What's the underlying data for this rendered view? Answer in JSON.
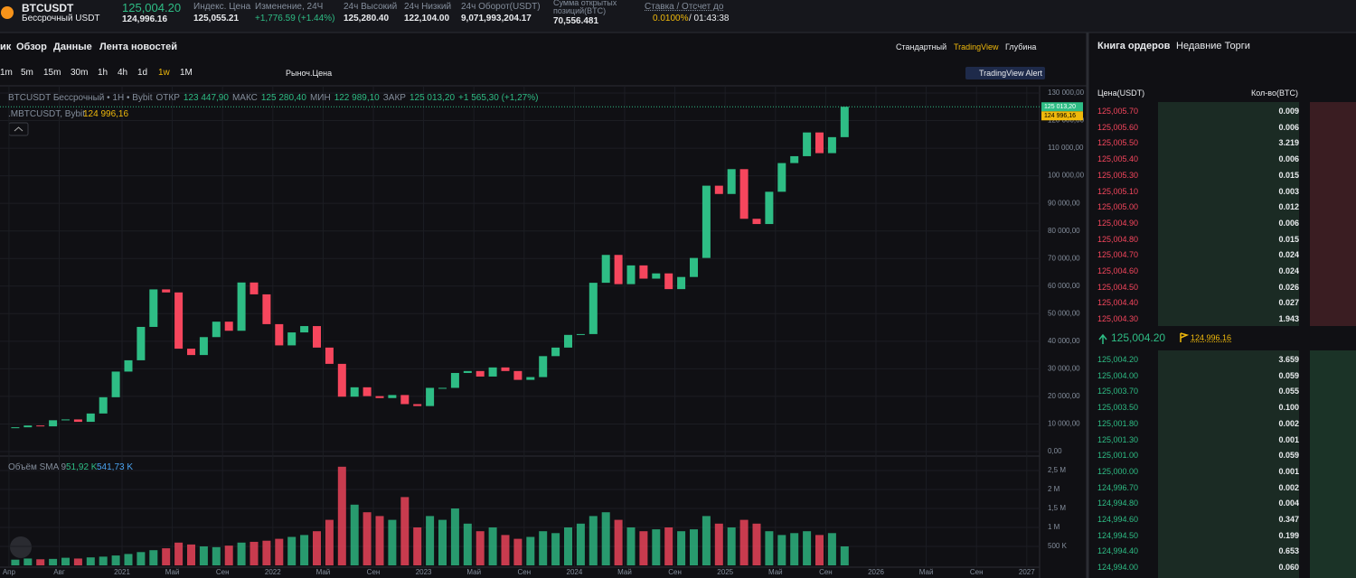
{
  "header": {
    "symbol": "BTCUSDT",
    "contract": "Бессрочный USDT",
    "last_price": "125,004.20",
    "mark_price": "124,996.16",
    "stats": [
      {
        "label": "Индекс. Цена",
        "value": "125,055.21"
      },
      {
        "label": "Изменение, 24Ч",
        "value": "+1,776.59 (+1.44%)"
      },
      {
        "label": "24ч Высокий",
        "value": "125,280.40"
      },
      {
        "label": "24ч Низкий",
        "value": "122,104.00"
      },
      {
        "label": "24ч Оборот(USDT)",
        "value": "9,071,993,204.17"
      },
      {
        "label": "Сумма открытых позиций(BTC)",
        "value": "70,556.481"
      }
    ],
    "funding_label": "Ставка / Отсчет до",
    "funding_rate": "0.0100%",
    "countdown": "/ 01:43:38"
  },
  "tabs": [
    "ик",
    "Обзор",
    "Данные",
    "Лента новостей"
  ],
  "views": [
    "Стандартный",
    "TradingView",
    "Глубина"
  ],
  "intervals": [
    "1m",
    "5m",
    "15m",
    "30m",
    "1h",
    "4h",
    "1d",
    "1w",
    "1M"
  ],
  "price_type": "Рыноч.Цена",
  "alert": "TradingView Alert",
  "legend": {
    "title": "BTCUSDT Бессрочный • 1H • Bybit",
    "ohlc": [
      {
        "label": "ОТКР",
        "value": "123 447,90"
      },
      {
        "label": "МАКС",
        "value": "125 280,40"
      },
      {
        "label": "МИН",
        "value": "122 989,10"
      },
      {
        "label": "ЗАКР",
        "value": "125 013,20"
      }
    ],
    "change": "+1 565,30 (+1,27%)",
    "index": ".MBTCUSDT, Bybit",
    "index_value": "124 996,16"
  },
  "volume_legend": {
    "title": "Объём SMA 9",
    "sma": "51,92 K",
    "volume": "541,73 K"
  },
  "chart": {
    "type": "candlestick",
    "up_color": "#2ebd85",
    "down_color": "#f6465d",
    "x": [
      "2020-04",
      "2020-05",
      "2020-06",
      "2020-07",
      "2020-08",
      "2020-09",
      "2020-10",
      "2020-11",
      "2020-12",
      "2021-01",
      "2021-02",
      "2021-03",
      "2021-04",
      "2021-05",
      "2021-06",
      "2021-07",
      "2021-08",
      "2021-09",
      "2021-10",
      "2021-11",
      "2021-12",
      "2022-01",
      "2022-02",
      "2022-03",
      "2022-04",
      "2022-05",
      "2022-06",
      "2022-07",
      "2022-08",
      "2022-09",
      "2022-10",
      "2022-11",
      "2022-12",
      "2023-01",
      "2023-02",
      "2023-03",
      "2023-04",
      "2023-05",
      "2023-06",
      "2023-07",
      "2023-08",
      "2023-09",
      "2023-10",
      "2023-11",
      "2023-12",
      "2024-01",
      "2024-02",
      "2024-03",
      "2024-04",
      "2024-05",
      "2024-06",
      "2024-07",
      "2024-08",
      "2024-09",
      "2024-10",
      "2024-11",
      "2024-12",
      "2025-01",
      "2025-02",
      "2025-03",
      "2025-04",
      "2025-05",
      "2025-06",
      "2025-07",
      "2025-08",
      "2025-09",
      "2025-10"
    ],
    "values": [
      8800,
      9450,
      9140,
      11350,
      11650,
      10780,
      13800,
      19700,
      29000,
      33100,
      45200,
      58800,
      57700,
      37300,
      35000,
      41500,
      47100,
      43800,
      61300,
      57000,
      46200,
      38500,
      43200,
      45500,
      37700,
      31800,
      19900,
      23300,
      20100,
      19400,
      20500,
      17200,
      16500,
      23100,
      23100,
      28500,
      29200,
      27200,
      30500,
      29200,
      26000,
      27000,
      34600,
      37700,
      42300,
      42600,
      61200,
      71300,
      60700,
      67500,
      62700,
      64600,
      58900,
      63300,
      70200,
      96400,
      93400,
      102400,
      84400,
      82500,
      94200,
      104600,
      107100,
      115700,
      108200,
      114000,
      125013.2
    ],
    "volumes": [
      150000,
      180000,
      160000,
      170000,
      200000,
      180000,
      210000,
      230000,
      260000,
      300000,
      350000,
      400000,
      450000,
      600000,
      550000,
      500000,
      480000,
      520000,
      600000,
      620000,
      650000,
      700000,
      750000,
      800000,
      900000,
      1200000,
      2600000,
      1600000,
      1400000,
      1300000,
      1200000,
      1800000,
      1000000,
      1300000,
      1200000,
      1500000,
      1100000,
      900000,
      1000000,
      800000,
      700000,
      750000,
      900000,
      850000,
      1000000,
      1100000,
      1300000,
      1400000,
      1200000,
      1000000,
      900000,
      950000,
      1000000,
      900000,
      950000,
      1300000,
      1100000,
      1000000,
      1200000,
      1100000,
      900000,
      800000,
      850000,
      900000,
      800000,
      850000,
      500000
    ],
    "ylim": [
      0,
      130000
    ],
    "yticks": [
      {
        "value": 0,
        "label": "0,00"
      },
      {
        "value": 10000,
        "label": "10 000,00"
      },
      {
        "value": 20000,
        "label": "20 000,00"
      },
      {
        "value": 30000,
        "label": "30 000,00"
      },
      {
        "value": 40000,
        "label": "40 000,00"
      },
      {
        "value": 50000,
        "label": "50 000,00"
      },
      {
        "value": 60000,
        "label": "60 000,00"
      },
      {
        "value": 70000,
        "label": "70 000,00"
      },
      {
        "value": 80000,
        "label": "80 000,00"
      },
      {
        "value": 90000,
        "label": "90 000,00"
      },
      {
        "value": 100000,
        "label": "100 000,00"
      },
      {
        "value": 110000,
        "label": "110 000,00"
      },
      {
        "value": 120000,
        "label": "120 000,00"
      },
      {
        "value": 130000,
        "label": "130 000,00"
      }
    ],
    "vol_lim": [
      0,
      2500000
    ],
    "vol_ticks": [
      {
        "value": 500000,
        "label": "500 K"
      },
      {
        "value": 1000000,
        "label": "1 M"
      },
      {
        "value": 1500000,
        "label": "1,5 M"
      },
      {
        "value": 2000000,
        "label": "2 M"
      },
      {
        "value": 2500000,
        "label": "2,5 M"
      }
    ],
    "xticks": [
      {
        "value": "2020-04",
        "label": "Апр"
      },
      {
        "value": "2020-08",
        "label": "Авг"
      },
      {
        "value": "2021-01",
        "label": "2021"
      },
      {
        "value": "2021-05",
        "label": "Май"
      },
      {
        "value": "2021-09",
        "label": "Сен"
      },
      {
        "value": "2022-01",
        "label": "2022"
      },
      {
        "value": "2022-05",
        "label": "Май"
      },
      {
        "value": "2022-09",
        "label": "Сен"
      },
      {
        "value": "2023-01",
        "label": "2023"
      },
      {
        "value": "2023-05",
        "label": "Май"
      },
      {
        "value": "2023-09",
        "label": "Сен"
      },
      {
        "value": "2024-01",
        "label": "2024"
      },
      {
        "value": "2024-05",
        "label": "Май"
      },
      {
        "value": "2024-09",
        "label": "Сен"
      },
      {
        "value": "2025-01",
        "label": "2025"
      },
      {
        "value": "2025-05",
        "label": "Май"
      },
      {
        "value": "2025-09",
        "label": "Сен"
      },
      {
        "value": "2026-01",
        "label": "2026"
      },
      {
        "value": "2026-05",
        "label": "Май"
      },
      {
        "value": "2026-09",
        "label": "Сен"
      },
      {
        "value": "2027-01",
        "label": "2027"
      }
    ],
    "last_label": {
      "value": 125013.2,
      "label": "125 013,20"
    },
    "index_label": {
      "value": 124996.16,
      "label": "124 996,16"
    }
  },
  "orderbook": {
    "tabs": [
      "Книга ордеров",
      "Недавние Торги"
    ],
    "columns": [
      "Цена(USDT)",
      "Кол-во(BTC)"
    ],
    "asks": [
      [
        "125,005.70",
        "0.009"
      ],
      [
        "125,005.60",
        "0.006"
      ],
      [
        "125,005.50",
        "3.219"
      ],
      [
        "125,005.40",
        "0.006"
      ],
      [
        "125,005.30",
        "0.015"
      ],
      [
        "125,005.10",
        "0.003"
      ],
      [
        "125,005.00",
        "0.012"
      ],
      [
        "125,004.90",
        "0.006"
      ],
      [
        "125,004.80",
        "0.015"
      ],
      [
        "125,004.70",
        "0.024"
      ],
      [
        "125,004.60",
        "0.024"
      ],
      [
        "125,004.50",
        "0.026"
      ],
      [
        "125,004.40",
        "0.027"
      ],
      [
        "125,004.30",
        "1.943"
      ]
    ],
    "mid": "125,004.20",
    "mark": "124,996.16",
    "bids": [
      [
        "125,004.20",
        "3.659"
      ],
      [
        "125,004.00",
        "0.059"
      ],
      [
        "125,003.70",
        "0.055"
      ],
      [
        "125,003.50",
        "0.100"
      ],
      [
        "125,001.80",
        "0.002"
      ],
      [
        "125,001.30",
        "0.001"
      ],
      [
        "125,001.00",
        "0.059"
      ],
      [
        "125,000.00",
        "0.001"
      ],
      [
        "124,996.70",
        "0.002"
      ],
      [
        "124,994.80",
        "0.004"
      ],
      [
        "124,994.60",
        "0.347"
      ],
      [
        "124,994.50",
        "0.199"
      ],
      [
        "124,994.40",
        "0.653"
      ],
      [
        "124,994.00",
        "0.060"
      ]
    ]
  }
}
